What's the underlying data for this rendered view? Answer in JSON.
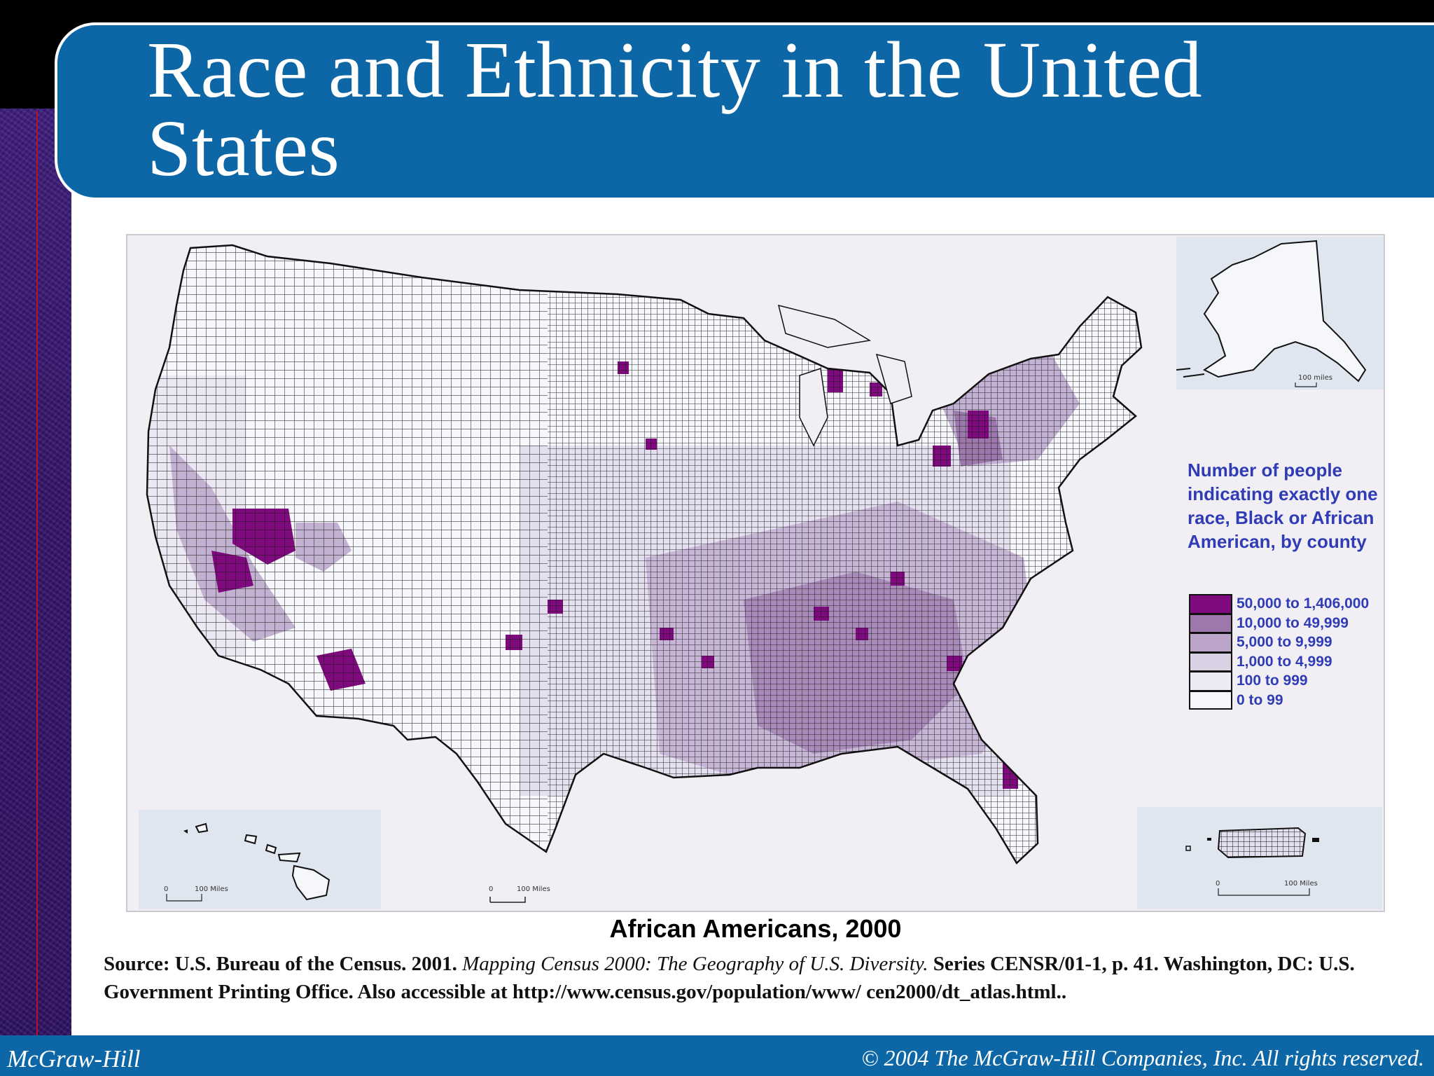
{
  "slide": {
    "title": "Race and Ethnicity in the United States",
    "colors": {
      "title_bar": "#0d67a6",
      "left_strip": "#3b1a7a",
      "legend_text": "#2f3cb5"
    }
  },
  "map": {
    "insets": {
      "alaska_scale": "100 miles",
      "hawaii_scale_zero": "0",
      "hawaii_scale_label": "100 Miles",
      "main_scale_zero": "0",
      "main_scale_label": "100 Miles",
      "pr_scale_zero": "0",
      "pr_scale_label": "100 Miles"
    },
    "legend": {
      "title": "Number of people indicating exactly one race, Black or African American, by county",
      "classes": [
        {
          "label": "50,000 to 1,406,000",
          "color": "#7e0a7e"
        },
        {
          "label": "10,000 to 49,999",
          "color": "#9d78ad"
        },
        {
          "label": "5,000 to 9,999",
          "color": "#bba6c9"
        },
        {
          "label": "1,000 to 4,999",
          "color": "#d9d2e5"
        },
        {
          "label": "100 to 999",
          "color": "#eceaf3"
        },
        {
          "label": "0 to 99",
          "color": "#f6f7fb"
        }
      ]
    },
    "caption": "African Americans, 2000"
  },
  "source": {
    "prefix": "Source: U.S. Bureau of the Census. 2001. ",
    "italic_title": "Mapping Census 2000: The Geography of U.S. Diversity.",
    "rest": " Series CENSR/01-1, p. 41. Washington, DC: U.S. Government Printing Office. Also accessible at http://www.census.gov/population/www/ cen2000/dt_atlas.html.."
  },
  "footer": {
    "left": "McGraw-Hill",
    "right": "© 2004 The McGraw-Hill Companies, Inc. All rights reserved."
  }
}
